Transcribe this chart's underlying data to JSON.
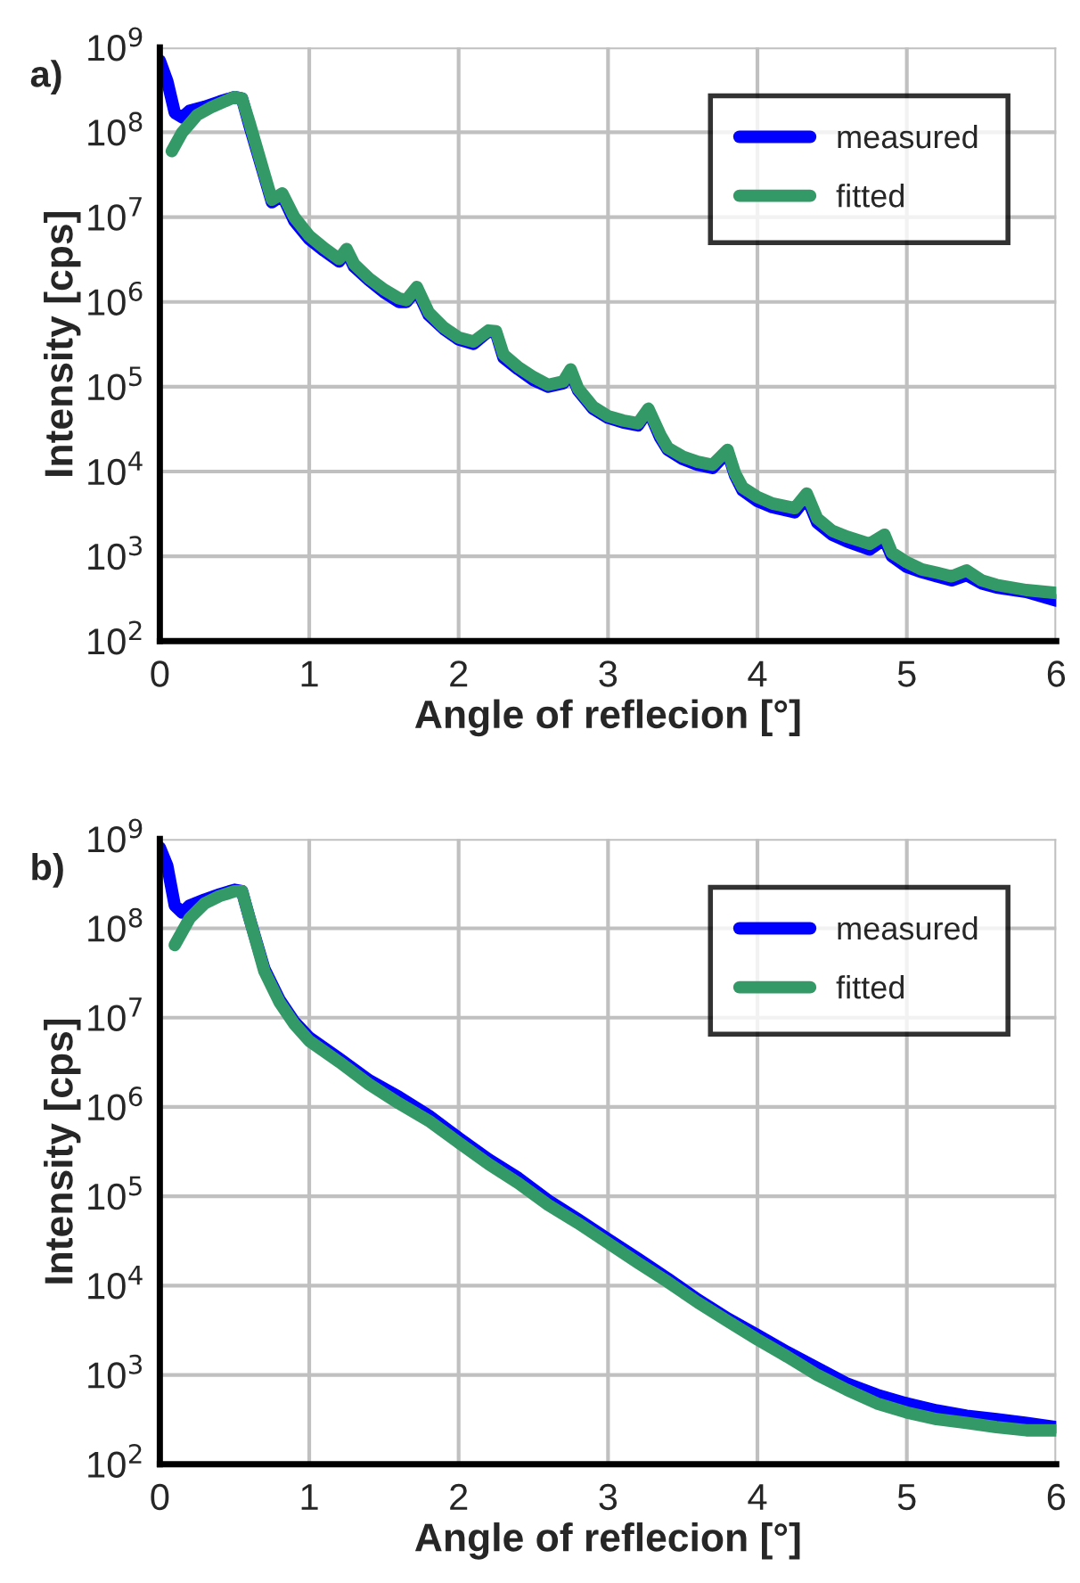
{
  "chart_data": [
    {
      "type": "line",
      "title": "a)",
      "xlabel": "Angle of reflecion [°]",
      "ylabel": "Intensity [cps]",
      "log": "y",
      "grid": true,
      "legend": "top right",
      "marker": "none",
      "line_style": "solid",
      "xlim": [
        0,
        6
      ],
      "xticks": [
        0,
        1,
        2,
        3,
        4,
        5,
        6
      ],
      "ylim": [
        100,
        1000000000
      ],
      "yticks": [
        {
          "value": 100,
          "label": "10$^{2}$"
        },
        {
          "value": 1000,
          "label": "10$^{3}$"
        },
        {
          "value": 10000,
          "label": "10$^{4}$"
        },
        {
          "value": 100000,
          "label": "10$^{5}$"
        },
        {
          "value": 1000000,
          "label": "10$^{6}$"
        },
        {
          "value": 10000000,
          "label": "10$^{7}$"
        },
        {
          "value": 100000000,
          "label": "10$^{8}$"
        },
        {
          "value": 1000000000,
          "label": "10$^{9}$"
        }
      ],
      "series": [
        {
          "name": "measured",
          "color": "#0000ff",
          "x": [
            0,
            0.05,
            0.1,
            0.15,
            0.2,
            0.3,
            0.4,
            0.5,
            0.55,
            0.6,
            0.7,
            0.75,
            0.82,
            0.9,
            1.0,
            1.1,
            1.2,
            1.25,
            1.3,
            1.4,
            1.5,
            1.6,
            1.65,
            1.72,
            1.8,
            1.9,
            2.0,
            2.1,
            2.2,
            2.25,
            2.3,
            2.4,
            2.5,
            2.6,
            2.7,
            2.75,
            2.8,
            2.9,
            3.0,
            3.1,
            3.2,
            3.27,
            3.35,
            3.4,
            3.5,
            3.6,
            3.7,
            3.8,
            3.85,
            3.9,
            4.0,
            4.1,
            4.25,
            4.33,
            4.4,
            4.5,
            4.6,
            4.75,
            4.85,
            4.9,
            5.0,
            5.1,
            5.2,
            5.3,
            5.4,
            5.5,
            5.6,
            5.8,
            6.0
          ],
          "values": [
            700000000,
            400000000,
            170000000,
            150000000,
            180000000,
            200000000,
            230000000,
            260000000,
            250000000,
            120000000,
            30000000,
            15000000,
            18000000,
            9000000,
            5500000,
            4000000,
            3000000,
            4000000,
            2600000,
            1800000,
            1300000,
            1000000,
            1000000,
            1400000,
            700000,
            480000,
            360000,
            320000,
            450000,
            430000,
            220000,
            160000,
            120000,
            100000,
            110000,
            150000,
            90000,
            55000,
            43000,
            38000,
            35000,
            53000,
            25000,
            18000,
            14000,
            12000,
            11000,
            17000,
            9000,
            6000,
            4500,
            3800,
            3300,
            5000,
            2500,
            1800,
            1500,
            1200,
            1600,
            1000,
            750,
            650,
            580,
            520,
            600,
            480,
            430,
            380,
            300
          ]
        },
        {
          "name": "fitted",
          "color": "#339966",
          "x": [
            0.08,
            0.15,
            0.25,
            0.35,
            0.5,
            0.55,
            0.6,
            0.7,
            0.75,
            0.82,
            0.9,
            1.0,
            1.1,
            1.2,
            1.25,
            1.3,
            1.4,
            1.5,
            1.6,
            1.65,
            1.72,
            1.8,
            1.9,
            2.0,
            2.1,
            2.2,
            2.25,
            2.3,
            2.4,
            2.5,
            2.6,
            2.7,
            2.75,
            2.8,
            2.9,
            3.0,
            3.1,
            3.2,
            3.27,
            3.35,
            3.4,
            3.5,
            3.6,
            3.7,
            3.8,
            3.85,
            3.9,
            4.0,
            4.1,
            4.25,
            4.33,
            4.4,
            4.5,
            4.6,
            4.75,
            4.85,
            4.9,
            5.0,
            5.1,
            5.2,
            5.3,
            5.4,
            5.5,
            5.6,
            5.8,
            6.0
          ],
          "values": [
            60000000,
            100000000,
            160000000,
            200000000,
            260000000,
            250000000,
            130000000,
            32000000,
            16000000,
            19000000,
            10000000,
            6000000,
            4300000,
            3200000,
            4200000,
            2800000,
            1900000,
            1400000,
            1100000,
            1050000,
            1500000,
            750000,
            500000,
            380000,
            340000,
            460000,
            450000,
            240000,
            170000,
            130000,
            105000,
            115000,
            160000,
            95000,
            58000,
            45000,
            40000,
            37000,
            55000,
            27000,
            19000,
            15000,
            13000,
            12000,
            18000,
            9500,
            6500,
            5000,
            4200,
            3700,
            5500,
            2800,
            2000,
            1700,
            1400,
            1800,
            1100,
            850,
            700,
            640,
            580,
            680,
            520,
            460,
            400,
            370
          ]
        }
      ]
    },
    {
      "type": "line",
      "title": "b)",
      "xlabel": "Angle of reflecion [°]",
      "ylabel": "Intensity [cps]",
      "log": "y",
      "grid": true,
      "legend": "top right",
      "marker": "none",
      "line_style": "solid",
      "xlim": [
        0,
        6
      ],
      "xticks": [
        0,
        1,
        2,
        3,
        4,
        5,
        6
      ],
      "ylim": [
        100,
        1000000000
      ],
      "yticks": [
        {
          "value": 100,
          "label": "10$^{2}$"
        },
        {
          "value": 1000,
          "label": "10$^{3}$"
        },
        {
          "value": 10000,
          "label": "10$^{4}$"
        },
        {
          "value": 100000,
          "label": "10$^{5}$"
        },
        {
          "value": 1000000,
          "label": "10$^{6}$"
        },
        {
          "value": 10000000,
          "label": "10$^{7}$"
        },
        {
          "value": 100000000,
          "label": "10$^{8}$"
        },
        {
          "value": 1000000000,
          "label": "10$^{9}$"
        }
      ],
      "series": [
        {
          "name": "measured",
          "color": "#0000ff",
          "x": [
            0,
            0.05,
            0.1,
            0.15,
            0.2,
            0.3,
            0.4,
            0.5,
            0.55,
            0.6,
            0.7,
            0.8,
            0.9,
            1.0,
            1.2,
            1.4,
            1.6,
            1.8,
            2.0,
            2.2,
            2.4,
            2.6,
            2.8,
            3.0,
            3.2,
            3.4,
            3.6,
            3.8,
            4.0,
            4.2,
            4.4,
            4.6,
            4.8,
            5.0,
            5.2,
            5.4,
            5.6,
            5.8,
            6.0
          ],
          "values": [
            800000000,
            500000000,
            180000000,
            150000000,
            180000000,
            210000000,
            240000000,
            270000000,
            260000000,
            130000000,
            35000000,
            16000000,
            9000000,
            6000000,
            3500000,
            2000000,
            1300000,
            800000,
            450000,
            260000,
            160000,
            90000,
            55000,
            33000,
            20000,
            12000,
            7000,
            4300,
            2800,
            1800,
            1200,
            800,
            600,
            480,
            400,
            350,
            320,
            290,
            260
          ]
        },
        {
          "name": "fitted",
          "color": "#339966",
          "x": [
            0.1,
            0.2,
            0.3,
            0.4,
            0.5,
            0.55,
            0.6,
            0.7,
            0.8,
            0.9,
            1.0,
            1.2,
            1.4,
            1.6,
            1.8,
            2.0,
            2.2,
            2.4,
            2.6,
            2.8,
            3.0,
            3.2,
            3.4,
            3.6,
            3.8,
            4.0,
            4.2,
            4.4,
            4.6,
            4.8,
            5.0,
            5.2,
            5.4,
            5.6,
            5.8,
            6.0
          ],
          "values": [
            65000000,
            130000000,
            190000000,
            230000000,
            260000000,
            260000000,
            130000000,
            33000000,
            15000000,
            8500000,
            5500000,
            3200000,
            1800000,
            1100000,
            700000,
            400000,
            230000,
            140000,
            80000,
            50000,
            30000,
            18000,
            11000,
            6500,
            4000,
            2500,
            1600,
            1000,
            680,
            480,
            380,
            320,
            290,
            260,
            240,
            240
          ]
        }
      ]
    }
  ]
}
